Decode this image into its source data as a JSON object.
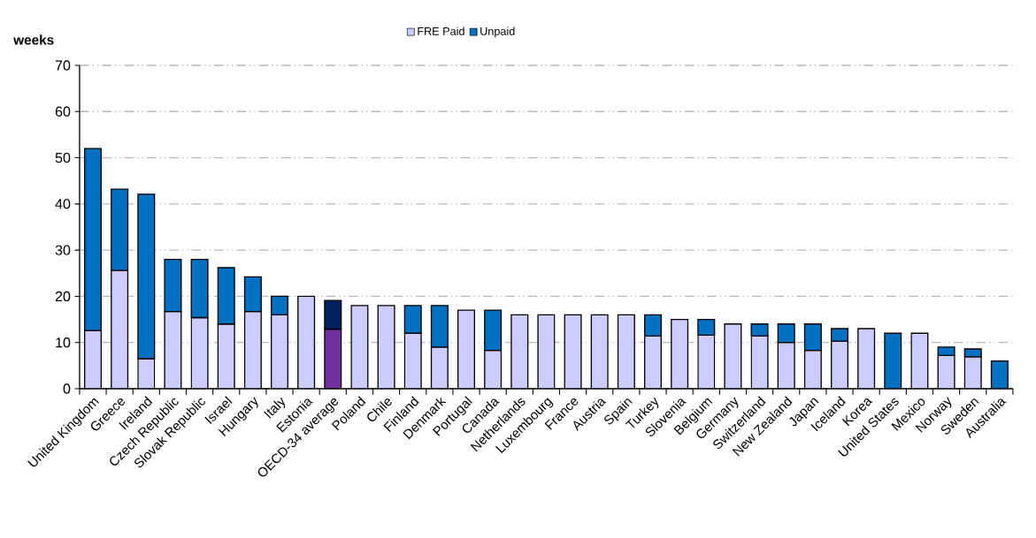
{
  "chart_data": {
    "type": "bar",
    "stacked": true,
    "ylabel": "weeks",
    "categories": [
      "United Kingdom",
      "Greece",
      "Ireland",
      "Czech Republic",
      "Slovak Republic",
      "Israel",
      "Hungary",
      "Italy",
      "Estonia",
      "OECD-34 average",
      "Poland",
      "Chile",
      "Finland",
      "Denmark",
      "Portugal",
      "Canada",
      "Netherlands",
      "Luxembourg",
      "France",
      "Austria",
      "Spain",
      "Turkey",
      "Slovenia",
      "Belgium",
      "Germany",
      "Switzerland",
      "New Zealand",
      "Japan",
      "Iceland",
      "Korea",
      "United States",
      "Mexico",
      "Norway",
      "Sweden",
      "Australia"
    ],
    "series": [
      {
        "name": "FRE Paid",
        "color": "#ccccff",
        "colors": [
          "#ccccff",
          "#ccccff",
          "#ccccff",
          "#ccccff",
          "#ccccff",
          "#ccccff",
          "#ccccff",
          "#ccccff",
          "#ccccff",
          "#7030a0",
          "#ccccff",
          "#ccccff",
          "#ccccff",
          "#ccccff",
          "#ccccff",
          "#ccccff",
          "#ccccff",
          "#ccccff",
          "#ccccff",
          "#ccccff",
          "#ccccff",
          "#ccccff",
          "#ccccff",
          "#ccccff",
          "#ccccff",
          "#ccccff",
          "#ccccff",
          "#ccccff",
          "#ccccff",
          "#ccccff",
          "#ccccff",
          "#ccccff",
          "#ccccff",
          "#ccccff",
          "#ccccff"
        ],
        "values": [
          12.6,
          25.6,
          6.5,
          16.7,
          15.4,
          14,
          16.7,
          16,
          20,
          12.9,
          18,
          18,
          12,
          9,
          17,
          8.3,
          16,
          16,
          16,
          16,
          16,
          11.4,
          15,
          11.6,
          14,
          11.4,
          10,
          8.3,
          10.3,
          13,
          0,
          12,
          7.2,
          6.9,
          0
        ]
      },
      {
        "name": "Unpaid",
        "color": "#0070c0",
        "colors": [
          "#0070c0",
          "#0070c0",
          "#0070c0",
          "#0070c0",
          "#0070c0",
          "#0070c0",
          "#0070c0",
          "#0070c0",
          "#0070c0",
          "#002060",
          "#0070c0",
          "#0070c0",
          "#0070c0",
          "#0070c0",
          "#0070c0",
          "#0070c0",
          "#0070c0",
          "#0070c0",
          "#0070c0",
          "#0070c0",
          "#0070c0",
          "#0070c0",
          "#0070c0",
          "#0070c0",
          "#0070c0",
          "#0070c0",
          "#0070c0",
          "#0070c0",
          "#0070c0",
          "#0070c0",
          "#0070c0",
          "#0070c0",
          "#0070c0",
          "#0070c0",
          "#0070c0"
        ],
        "values": [
          39.4,
          17.6,
          35.6,
          11.3,
          12.6,
          12.2,
          7.5,
          4,
          0,
          6.2,
          0,
          0,
          6,
          9,
          0,
          8.7,
          0,
          0,
          0,
          0,
          0,
          4.6,
          0,
          3.4,
          0,
          2.6,
          4,
          5.7,
          2.7,
          0,
          12,
          0,
          1.8,
          1.7,
          6
        ]
      }
    ],
    "ylim": [
      0,
      70
    ],
    "yticks": [
      0,
      10,
      20,
      30,
      40,
      50,
      60,
      70
    ],
    "grid": "y",
    "legend": "top"
  }
}
